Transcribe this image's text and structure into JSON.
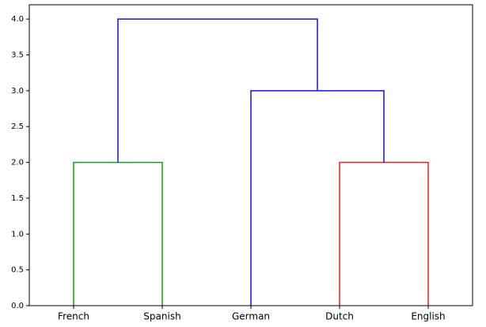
{
  "chart_data": {
    "type": "dendrogram",
    "categories": [
      "French",
      "Spanish",
      "German",
      "Dutch",
      "English"
    ],
    "merges": [
      {
        "left": 0,
        "right": 1,
        "height": 2.0,
        "color": "#1c9a1c"
      },
      {
        "left": 3,
        "right": 4,
        "height": 2.0,
        "color": "#e8221c"
      },
      {
        "left": 2,
        "right": 6,
        "height": 3.0,
        "color": "#1414d8"
      },
      {
        "left": 5,
        "right": 7,
        "height": 4.0,
        "color": "#1414d8"
      }
    ],
    "ylim": [
      0,
      4.2
    ],
    "yticks": [
      {
        "value": 0,
        "label": "0.0"
      },
      0.5,
      {
        "value": 1,
        "label": "1.0"
      },
      1.5,
      {
        "value": 2,
        "label": "2.0"
      },
      2.5,
      {
        "value": 3,
        "label": "3.0"
      },
      3.5,
      {
        "value": 4,
        "label": "4.0"
      }
    ]
  }
}
